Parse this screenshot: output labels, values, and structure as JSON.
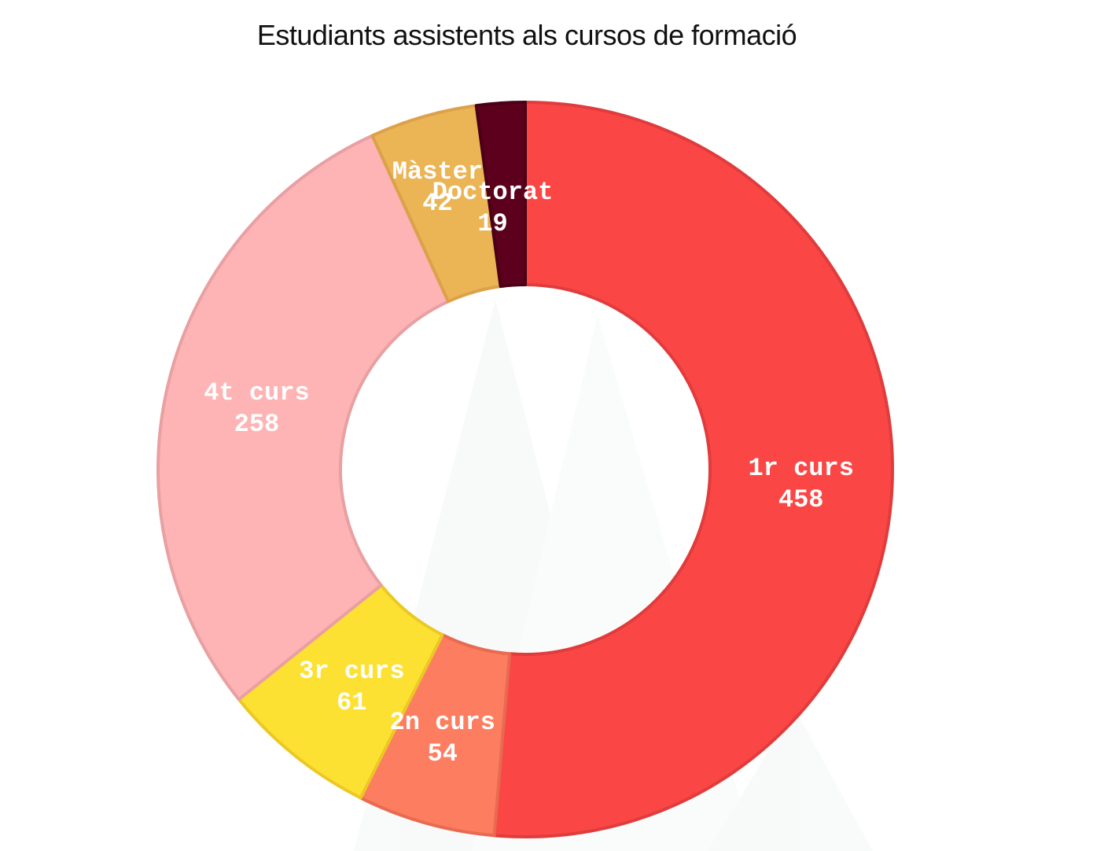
{
  "chart_data": {
    "type": "pie",
    "variant": "donut",
    "title": "Estudiants assistents als cursos de formació",
    "categories": [
      "1r curs",
      "2n curs",
      "3r curs",
      "4t curs",
      "Màster",
      "Doctorat"
    ],
    "values": [
      458,
      54,
      61,
      258,
      42,
      19
    ],
    "colors": [
      "#fb4646",
      "#fd7d60",
      "#fce133",
      "#feb4b4",
      "#ebb455",
      "#5d001d"
    ],
    "stroke_colors": [
      "#e03c3c",
      "#e86a50",
      "#ecc825",
      "#e8a0a2",
      "#dca14a",
      "#4a0016"
    ]
  }
}
